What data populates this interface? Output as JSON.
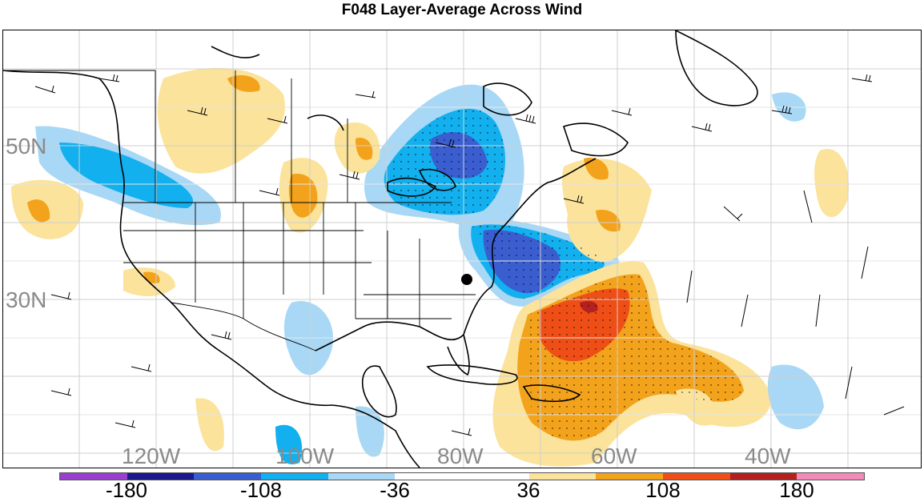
{
  "title": "F048 Layer-Average Across Wind",
  "lat_labels": [
    {
      "text": "50N",
      "y": 50
    },
    {
      "text": "30N",
      "y": 30
    }
  ],
  "lon_labels": [
    {
      "text": "120W",
      "x": -120
    },
    {
      "text": "100W",
      "x": -100
    },
    {
      "text": "80W",
      "x": -80
    },
    {
      "text": "60W",
      "x": -60
    },
    {
      "text": "40W",
      "x": -40
    }
  ],
  "colorbar": {
    "colors": [
      "#9b3fd1",
      "#1a1a8c",
      "#3a5ecf",
      "#12b0ef",
      "#a8d8f5",
      "#ffffff",
      "#ffffff",
      "#fbe39b",
      "#f3a21b",
      "#ef4f16",
      "#b42121",
      "#f48ab8"
    ],
    "tick_labels": [
      "-180",
      "-108",
      "-36",
      "36",
      "108",
      "180"
    ]
  },
  "marker": {
    "label": "dot",
    "lon": -81.5,
    "lat": 32.2
  }
}
